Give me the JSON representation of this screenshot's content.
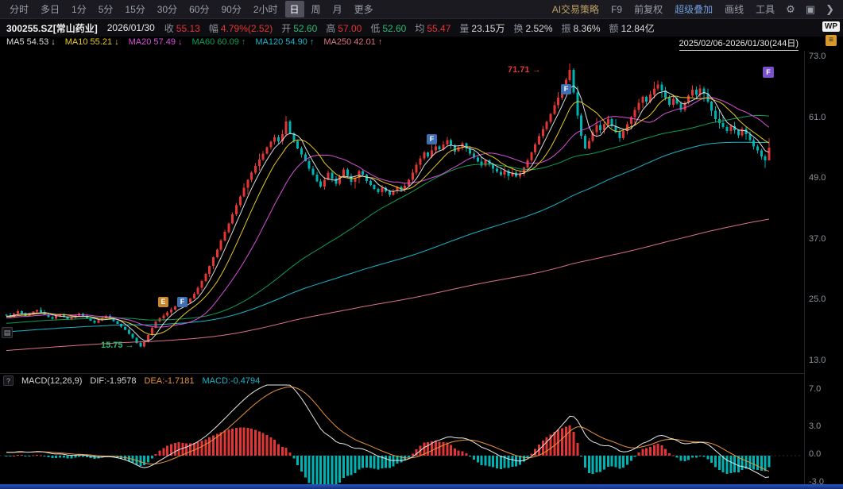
{
  "palette": {
    "up": "#e23535",
    "down": "#2eb872",
    "plain": "#d8d8d8"
  },
  "toolbar": {
    "left_items": [
      "分时",
      "多日",
      "1分",
      "5分",
      "15分",
      "30分",
      "60分",
      "90分",
      "2小时",
      "日",
      "周",
      "月",
      "更多"
    ],
    "selected": "日",
    "right_items": [
      {
        "label": "AI交易策略",
        "name": "ai-strategy",
        "color": "#bfa163"
      },
      {
        "label": "F9",
        "name": "f9"
      },
      {
        "label": "前复权",
        "name": "forward-adjust"
      },
      {
        "label": "超级叠加",
        "name": "super-overlay",
        "color": "#6f9bd8"
      },
      {
        "label": "画线",
        "name": "draw-line"
      },
      {
        "label": "工具",
        "name": "tools"
      }
    ],
    "icons": [
      {
        "name": "settings-gear-icon",
        "glyph": "⚙"
      },
      {
        "name": "fullscreen-icon",
        "glyph": "▣"
      },
      {
        "name": "collapse-panel-icon",
        "glyph": "❯"
      }
    ]
  },
  "info_bar": {
    "symbol": "300255.SZ[常山药业]",
    "date": "2026/01/30",
    "fields": [
      {
        "key": "close",
        "label": "收",
        "value": "55.13",
        "tone": "up"
      },
      {
        "key": "change",
        "label": "幅",
        "value": "4.79%(2.52)",
        "tone": "up"
      },
      {
        "key": "open",
        "label": "开",
        "value": "52.60",
        "tone": "down"
      },
      {
        "key": "high",
        "label": "高",
        "value": "57.00",
        "tone": "up"
      },
      {
        "key": "low",
        "label": "低",
        "value": "52.60",
        "tone": "down"
      },
      {
        "key": "avg",
        "label": "均",
        "value": "55.47",
        "tone": "up"
      },
      {
        "key": "volume",
        "label": "量",
        "value": "23.15万",
        "tone": "plain"
      },
      {
        "key": "turnover",
        "label": "换",
        "value": "2.52%",
        "tone": "plain"
      },
      {
        "key": "amplitude",
        "label": "振",
        "value": "8.36%",
        "tone": "plain"
      },
      {
        "key": "amount",
        "label": "额",
        "value": "12.84亿",
        "tone": "plain"
      }
    ],
    "wp_badge": "WP"
  },
  "ma_legend": {
    "items": [
      {
        "label": "MA5",
        "value": "54.53",
        "dir": "↓",
        "color": "#dcdcdc"
      },
      {
        "label": "MA10",
        "value": "55.21",
        "dir": "↓",
        "color": "#e8c921"
      },
      {
        "label": "MA20",
        "value": "57.49",
        "dir": "↓",
        "color": "#d94fd9"
      },
      {
        "label": "MA60",
        "value": "60.09",
        "dir": "↑",
        "color": "#0f9d58"
      },
      {
        "label": "MA120",
        "value": "54.90",
        "dir": "↑",
        "color": "#18b6c9"
      },
      {
        "label": "MA250",
        "value": "42.01",
        "dir": "↑",
        "color": "#d97287"
      }
    ],
    "date_range": "2025/02/06-2026/01/30(244日)",
    "flag_icon_glyph": "≡"
  },
  "macd_bar": {
    "help_glyph": "?",
    "title": "MACD(12,26,9)",
    "dif_label": "DIF:-1.9578",
    "dea_label": "DEA:-1.7181",
    "macd_label": "MACD:-0.4794"
  },
  "left_tool_glyph": "▤",
  "annotations": {
    "high_label": "71.71",
    "low_label": "15.75",
    "window_badge": "F"
  },
  "chart_data": {
    "type": "candlestick",
    "title": "300255.SZ 常山药业 日K线",
    "x_range_label": "2025/02/06-2026/01/30(244日)",
    "represented_days": 244,
    "price_axis": {
      "min": 13,
      "max": 73,
      "ticks": [
        "73.0",
        "61.0",
        "49.0",
        "37.0",
        "25.0",
        "13.0"
      ]
    },
    "macd_panel": {
      "params": "12,26,9",
      "dif": -1.9578,
      "dea": -1.7181,
      "macd": -0.4794,
      "ticks": [
        "7.0",
        "3.0",
        "0.0",
        "-3.0"
      ]
    },
    "colors": {
      "up": "#e23535",
      "down": "#00b2b2",
      "ma5": "#dcdcdc",
      "ma10": "#e8c921",
      "ma20": "#d94fd9",
      "ma60": "#0f9d58",
      "ma120": "#18b6c9",
      "ma250": "#d97287",
      "dif_line": "#e8e8e8",
      "dea_line": "#e8933c"
    },
    "ma_periods": [
      5,
      10,
      20,
      60,
      120,
      250
    ],
    "closes": [
      22.1,
      21.8,
      22.4,
      22.9,
      22.5,
      21.9,
      22.3,
      22.8,
      23.1,
      22.6,
      22.2,
      21.7,
      21.4,
      21.9,
      22.3,
      21.8,
      21.2,
      21.6,
      22.0,
      22.4,
      21.9,
      21.5,
      21.0,
      20.6,
      21.1,
      21.5,
      21.9,
      21.4,
      20.9,
      20.4,
      19.8,
      19.2,
      18.4,
      17.6,
      16.6,
      15.9,
      16.8,
      18.2,
      19.6,
      20.8,
      21.5,
      22.0,
      22.6,
      23.2,
      23.8,
      24.4,
      23.9,
      24.6,
      25.4,
      26.3,
      27.5,
      28.8,
      30.2,
      31.8,
      33.5,
      35.0,
      36.8,
      38.5,
      40.2,
      42.0,
      43.8,
      45.5,
      47.2,
      48.8,
      50.2,
      51.5,
      52.8,
      54.0,
      55.2,
      56.3,
      57.2,
      56.4,
      57.8,
      60.3,
      58.0,
      56.5,
      55.0,
      53.8,
      52.5,
      51.0,
      49.8,
      48.5,
      47.5,
      48.8,
      50.2,
      49.0,
      48.0,
      49.5,
      50.8,
      49.6,
      48.4,
      49.2,
      50.5,
      49.8,
      48.6,
      47.8,
      47.0,
      46.4,
      47.2,
      46.5,
      45.8,
      46.6,
      47.4,
      46.8,
      47.6,
      48.8,
      50.2,
      51.8,
      53.0,
      54.2,
      53.4,
      54.6,
      55.4,
      54.8,
      55.8,
      56.6,
      55.6,
      54.4,
      55.2,
      56.0,
      55.0,
      54.0,
      53.2,
      52.4,
      51.6,
      52.6,
      51.8,
      51.0,
      50.4,
      49.8,
      50.6,
      49.6,
      50.2,
      49.4,
      50.0,
      51.2,
      52.6,
      54.2,
      55.8,
      57.4,
      58.8,
      60.2,
      61.8,
      63.5,
      65.0,
      66.8,
      68.5,
      70.5,
      66.0,
      61.5,
      57.5,
      55.0,
      56.5,
      58.2,
      59.6,
      58.6,
      59.8,
      60.8,
      59.4,
      58.2,
      57.0,
      58.4,
      59.8,
      61.2,
      62.6,
      64.0,
      65.2,
      64.2,
      65.6,
      66.8,
      67.6,
      66.4,
      65.0,
      63.6,
      64.8,
      63.8,
      62.6,
      64.0,
      65.4,
      66.6,
      65.6,
      66.8,
      65.8,
      64.2,
      62.4,
      60.8,
      60.0,
      59.2,
      58.4,
      59.4,
      58.6,
      57.6,
      58.8,
      57.8,
      56.6,
      55.4,
      54.6,
      53.4,
      52.61,
      55.13
    ],
    "last_bar": {
      "open": 52.6,
      "high": 57.0,
      "low": 52.6,
      "close": 55.13
    },
    "extremes": {
      "low": {
        "index": 35,
        "price": 15.75
      },
      "high": {
        "index": 147,
        "price": 71.71
      },
      "spike": {
        "index": 73,
        "price": 61.4
      }
    },
    "markers": [
      {
        "label": "E",
        "index": 41,
        "price": 24.6,
        "color": "#c8872b"
      },
      {
        "label": "F",
        "index": 46,
        "price": 24.6,
        "color": "#3f6fae"
      },
      {
        "label": "F",
        "index": 111,
        "price": 56.8,
        "color": "#3f6fae"
      },
      {
        "label": "F",
        "index": 146,
        "price": 66.6,
        "color": "#3f6fae"
      }
    ]
  }
}
